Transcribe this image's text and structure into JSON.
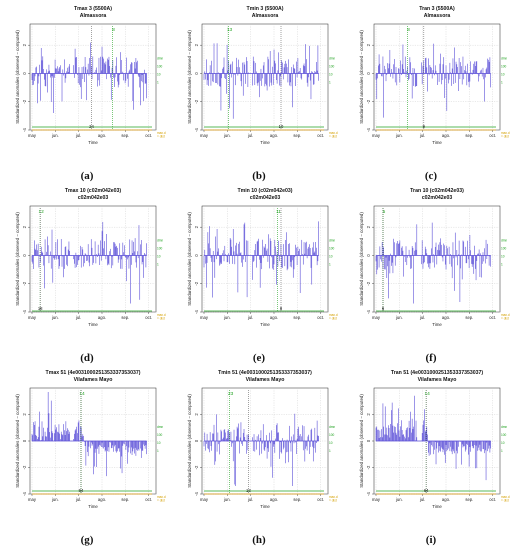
{
  "colors": {
    "series": "#5b4fd8",
    "green": "#22a322",
    "orange": "#e8a317",
    "grid": "#c8c8c8"
  },
  "common": {
    "xlabel": "Time",
    "ylabel": "Standardized anomalies (observed − computed)",
    "months": [
      "may",
      "jun.",
      "jul.",
      "ago.",
      "sep.",
      "oct."
    ],
    "yticks": [
      "2",
      "0",
      "-2",
      "-4"
    ],
    "right_labels": [
      "dmn",
      "100",
      "10",
      "1"
    ],
    "right_labels_orange": [
      "max.d",
      "= dist"
    ]
  },
  "chart_data": [
    {
      "type": "bar",
      "title_line1": "Tmax   3 (5500A)",
      "title_line2": "Almassora",
      "caption": "(a)",
      "marker_label": "8",
      "marker_month": 3.45,
      "bottom_label": "24",
      "bottom_month": 2.55,
      "ylim": [
        -4,
        3.5
      ],
      "seed": 11,
      "has_orange": true
    },
    {
      "type": "bar",
      "title_line1": "Tmin   3 (5500A)",
      "title_line2": "Almassora",
      "caption": "(b)",
      "marker_label": "13",
      "marker_month": 1.05,
      "bottom_label": "10",
      "bottom_month": 3.3,
      "ylim": [
        -4,
        3.5
      ],
      "seed": 23,
      "has_orange": true
    },
    {
      "type": "bar",
      "title_line1": "Tran   3 (5500A)",
      "title_line2": "Almassora",
      "caption": "(c)",
      "marker_label": "8",
      "marker_month": 1.35,
      "bottom_label": "9",
      "bottom_month": 2.05,
      "ylim": [
        -4,
        3.5
      ],
      "seed": 37,
      "has_orange": true
    },
    {
      "type": "bar",
      "title_line1": "Tmax   10 (c02m042e03)",
      "title_line2": "c02m042e03",
      "caption": "(d)",
      "marker_label": "12",
      "marker_month": 0.35,
      "bottom_label": "18",
      "bottom_month": 0.35,
      "ylim": [
        -4,
        3.5
      ],
      "seed": 41,
      "has_orange": false
    },
    {
      "type": "bar",
      "title_line1": "Tmin   10 (c02m042e03)",
      "title_line2": "c02m042e03",
      "caption": "(e)",
      "marker_label": "11",
      "marker_month": 3.15,
      "bottom_label": "8",
      "bottom_month": 3.3,
      "ylim": [
        -4,
        3.5
      ],
      "seed": 53,
      "has_orange": false
    },
    {
      "type": "bar",
      "title_line1": "Tran   10 (c02m042e03)",
      "title_line2": "c02m042e03",
      "caption": "(f)",
      "marker_label": "5",
      "marker_month": 0.3,
      "bottom_label": "6",
      "bottom_month": 0.3,
      "ylim": [
        -4,
        3.5
      ],
      "seed": 67,
      "has_orange": false
    },
    {
      "type": "bar",
      "title_line1": "Tmax   51 (4e0031000251353337353037)",
      "title_line2": "Vilafames Mayo",
      "caption": "(g)",
      "marker_label": "14",
      "marker_month": 2.1,
      "bottom_label": "64",
      "bottom_month": 2.1,
      "ylim": [
        -4,
        4
      ],
      "seed": 71,
      "has_orange": true
    },
    {
      "type": "bar",
      "title_line1": "Tmin   51 (4e0031000251353337353037)",
      "title_line2": "Vilafames Mayo",
      "caption": "(h)",
      "marker_label": "23",
      "marker_month": 1.1,
      "bottom_label": "13",
      "bottom_month": 1.9,
      "ylim": [
        -4,
        4
      ],
      "seed": 83,
      "has_orange": true
    },
    {
      "type": "bar",
      "title_line1": "Tran   51 (4e0031000251353337353037)",
      "title_line2": "Vilafames Mayo",
      "caption": "(i)",
      "marker_label": "14",
      "marker_month": 2.15,
      "bottom_label": "64",
      "bottom_month": 2.15,
      "ylim": [
        -4,
        4
      ],
      "seed": 97,
      "has_orange": true
    }
  ]
}
